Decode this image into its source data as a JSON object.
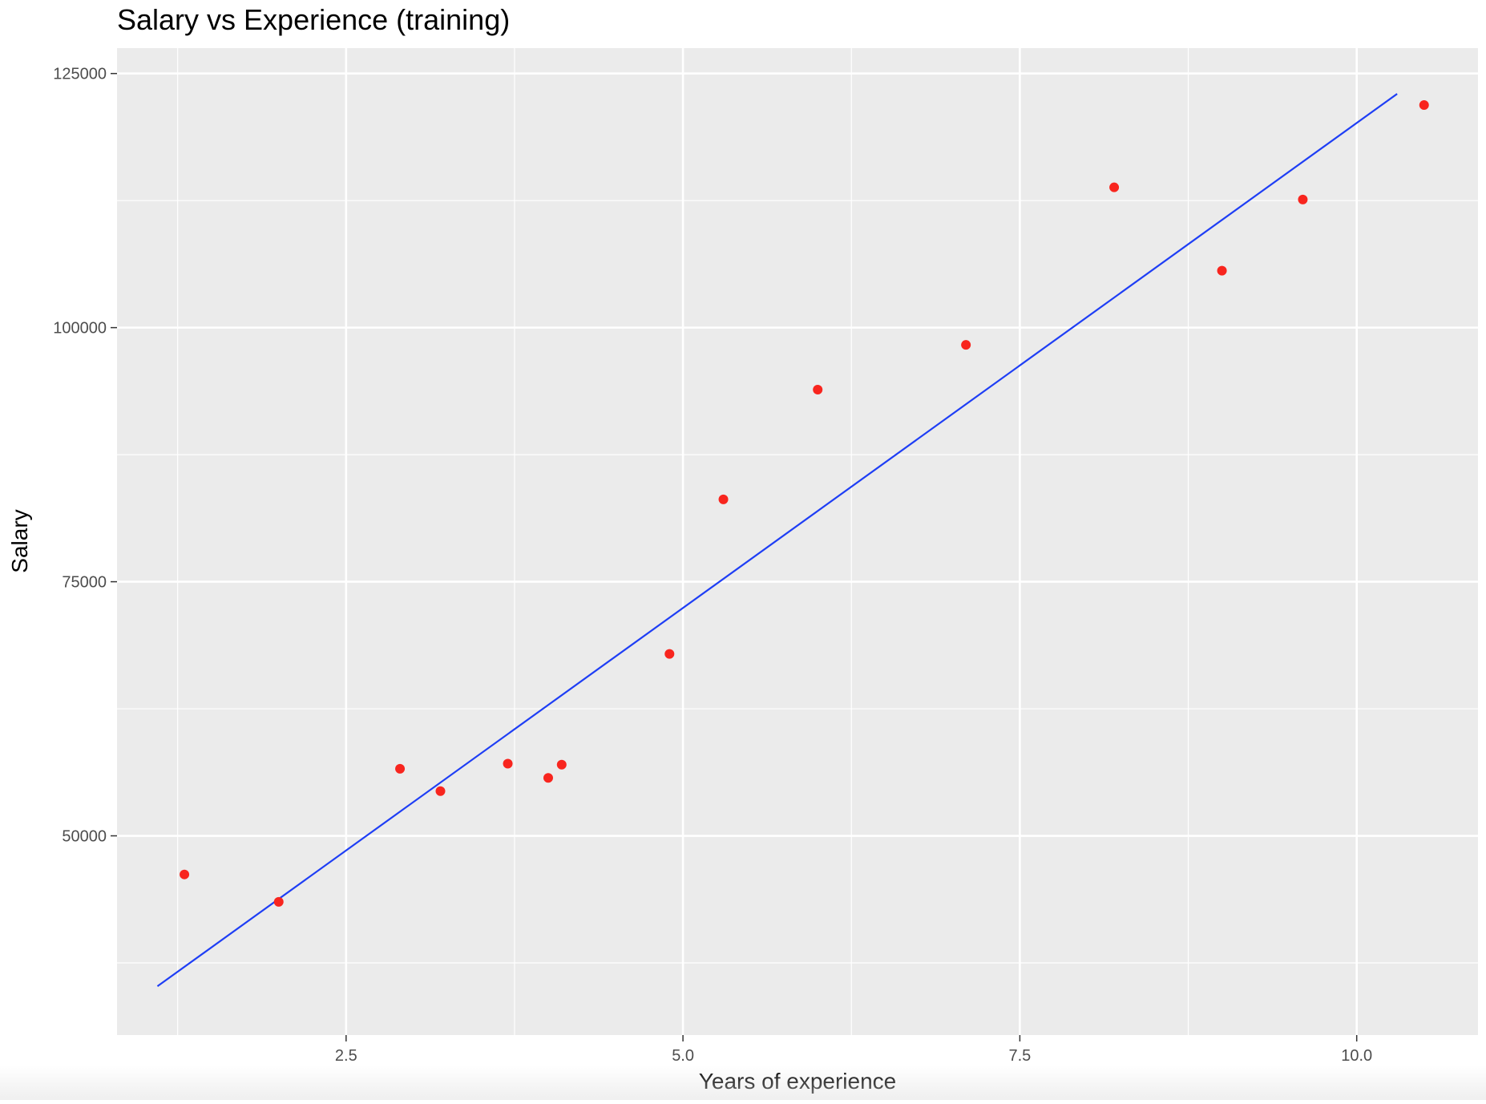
{
  "chart_data": {
    "type": "scatter",
    "title": "Salary vs Experience (training)",
    "xlabel": "Years of experience",
    "ylabel": "Salary",
    "xlim": [
      0.8,
      10.9
    ],
    "ylim": [
      30400,
      127500
    ],
    "x_ticks": [
      2.5,
      5.0,
      7.5,
      10.0
    ],
    "x_tick_labels": [
      "2.5",
      "5.0",
      "7.5",
      "10.0"
    ],
    "y_ticks": [
      50000,
      75000,
      100000,
      125000
    ],
    "y_tick_labels": [
      "50000",
      "75000",
      "100000",
      "125000"
    ],
    "grid": true,
    "background_color": "#ebebeb",
    "grid_color": "#ffffff",
    "points": {
      "color": "#f8251e",
      "x": [
        1.3,
        2.0,
        2.9,
        3.2,
        3.7,
        4.0,
        4.1,
        4.9,
        5.3,
        6.0,
        7.1,
        8.2,
        9.0,
        9.6,
        10.5
      ],
      "y": [
        46200,
        43500,
        56600,
        54400,
        57100,
        55700,
        57000,
        67900,
        83100,
        93900,
        98300,
        113800,
        105600,
        112600,
        121900
      ]
    },
    "fit_line": {
      "color": "#1e3ef5",
      "x": [
        1.1,
        10.3
      ],
      "y": [
        35200,
        123000
      ]
    }
  }
}
